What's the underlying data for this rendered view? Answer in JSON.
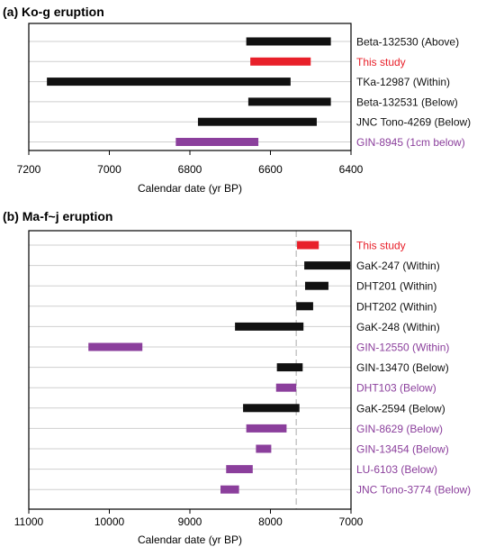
{
  "colors": {
    "black": "#111111",
    "red": "#e8202a",
    "purple": "#8b3f9c",
    "grid": "#cfcfcf",
    "frame": "#000000"
  },
  "chart_data": [
    {
      "type": "range-bar",
      "title": "(a) Ko-g eruption",
      "xlabel": "Calendar date (yr BP)",
      "x_reversed": true,
      "xlim": [
        7200,
        6400
      ],
      "x_ticks": [
        7200,
        7000,
        6800,
        6600,
        6400
      ],
      "grid": "horizontal",
      "series": [
        {
          "label": "Beta-132530 (Above)",
          "start": 6660,
          "end": 6450,
          "color": "black"
        },
        {
          "label": "This study",
          "start": 6650,
          "end": 6500,
          "color": "red"
        },
        {
          "label": "TKa-12987 (Within)",
          "start": 7155,
          "end": 6550,
          "color": "black"
        },
        {
          "label": "Beta-132531 (Below)",
          "start": 6655,
          "end": 6450,
          "color": "black"
        },
        {
          "label": "JNC Tono-4269 (Below)",
          "start": 6780,
          "end": 6485,
          "color": "black"
        },
        {
          "label": "GIN-8945 (1cm below)",
          "start": 6835,
          "end": 6630,
          "color": "purple"
        }
      ]
    },
    {
      "type": "range-bar",
      "title": "(b) Ma-f~j eruption",
      "xlabel": "Calendar date (yr BP)",
      "x_reversed": true,
      "xlim": [
        11000,
        7000
      ],
      "x_ticks": [
        11000,
        10000,
        9000,
        8000,
        7000
      ],
      "grid": "horizontal",
      "reference_line": 7680,
      "series": [
        {
          "label": "This study",
          "start": 7670,
          "end": 7400,
          "color": "red"
        },
        {
          "label": "GaK-247 (Within)",
          "start": 7580,
          "end": 7010,
          "color": "black"
        },
        {
          "label": "DHT201 (Within)",
          "start": 7570,
          "end": 7280,
          "color": "black"
        },
        {
          "label": "DHT202 (Within)",
          "start": 7680,
          "end": 7470,
          "color": "black"
        },
        {
          "label": "GaK-248 (Within)",
          "start": 8440,
          "end": 7590,
          "color": "black"
        },
        {
          "label": "GIN-12550 (Within)",
          "start": 10260,
          "end": 9590,
          "color": "purple"
        },
        {
          "label": "GIN-13470 (Below)",
          "start": 7920,
          "end": 7600,
          "color": "black"
        },
        {
          "label": "DHT103 (Below)",
          "start": 7930,
          "end": 7680,
          "color": "purple"
        },
        {
          "label": "GaK-2594 (Below)",
          "start": 8340,
          "end": 7640,
          "color": "black"
        },
        {
          "label": "GIN-8629 (Below)",
          "start": 8300,
          "end": 7800,
          "color": "purple"
        },
        {
          "label": "GIN-13454 (Below)",
          "start": 8180,
          "end": 7990,
          "color": "purple"
        },
        {
          "label": "LU-6103 (Below)",
          "start": 8550,
          "end": 8220,
          "color": "purple"
        },
        {
          "label": "JNC Tono-3774 (Below)",
          "start": 8620,
          "end": 8390,
          "color": "purple"
        }
      ]
    }
  ]
}
